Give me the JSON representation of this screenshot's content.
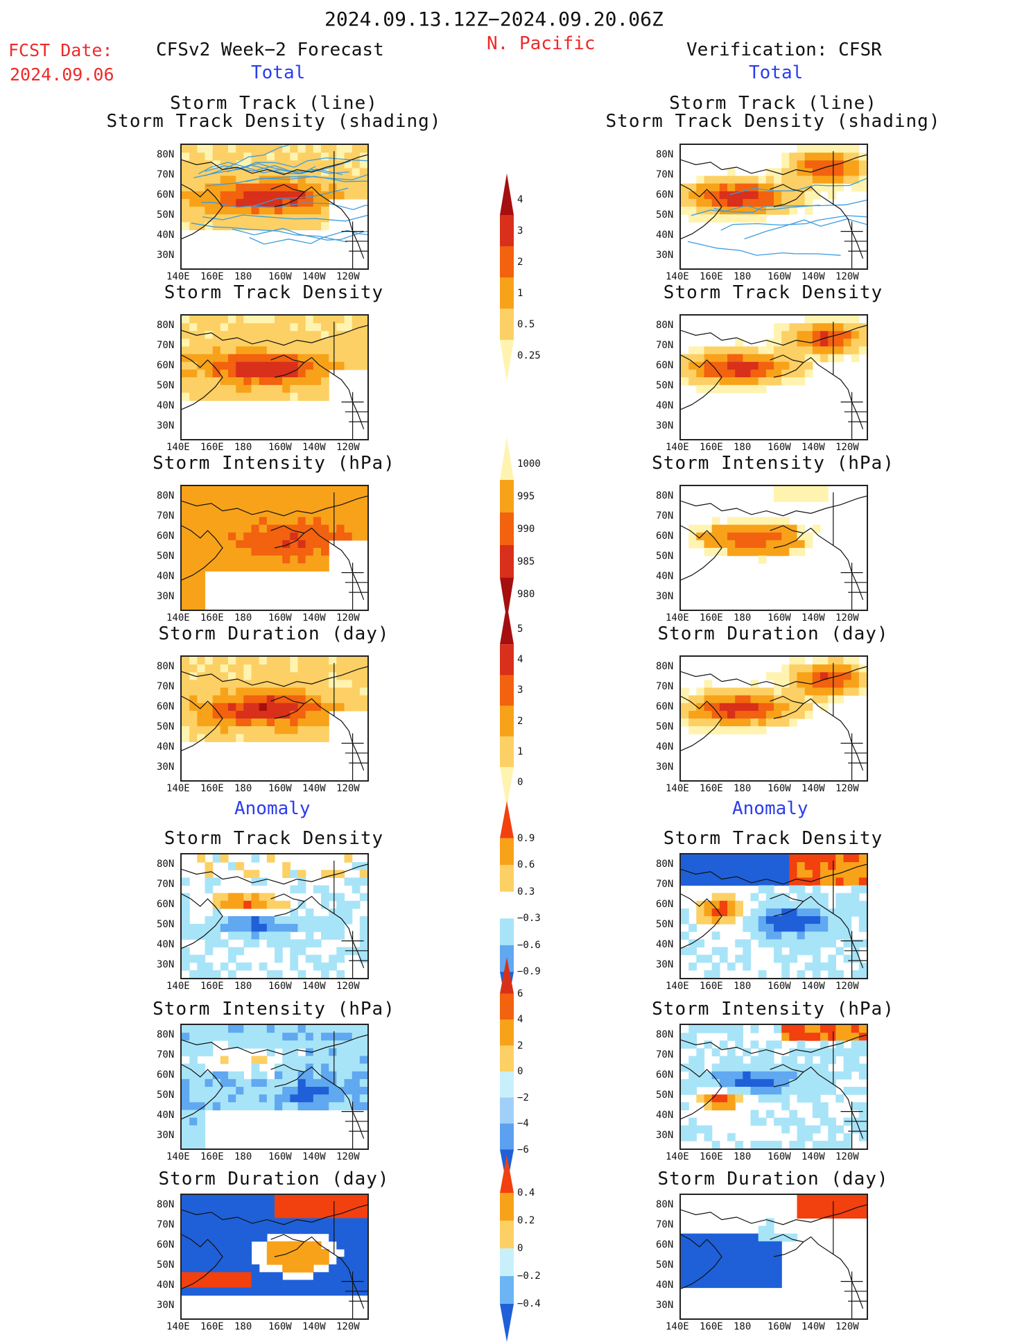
{
  "header": {
    "date_range": "2024.09.13.12Z−2024.09.20.06Z",
    "region": "N. Pacific",
    "fcst_label": "FCST Date:",
    "fcst_date": "2024.09.06",
    "left_title": "CFSv2 Week−2 Forecast",
    "right_title": "Verification: CFSR",
    "total_label": "Total",
    "anomaly_label": "Anomaly"
  },
  "axes": {
    "lat_ticks": [
      "80N",
      "70N",
      "60N",
      "50N",
      "40N",
      "30N"
    ],
    "lon_ticks": [
      "140E",
      "160E",
      "180",
      "160W",
      "140W",
      "120W"
    ]
  },
  "panels": [
    {
      "title_line1": "Storm Track (line)",
      "title_line2": "Storm Track Density (shading)",
      "palette": "total",
      "pattern": "std_f"
    },
    {
      "title_line1": "Storm Track Density",
      "title_line2": "",
      "palette": "total",
      "pattern": "std_f"
    },
    {
      "title_line1": "Storm Intensity (hPa)",
      "title_line2": "",
      "palette": "int",
      "pattern": "si_f"
    },
    {
      "title_line1": "Storm Duration (day)",
      "title_line2": "",
      "palette": "total",
      "pattern": "sd_f"
    },
    {
      "title_line1": "Storm Track Density",
      "title_line2": "",
      "palette": "anom",
      "pattern": "a_std_f"
    },
    {
      "title_line1": "Storm Intensity (hPa)",
      "title_line2": "",
      "palette": "anom",
      "pattern": "a_si_f"
    },
    {
      "title_line1": "Storm Duration (day)",
      "title_line2": "",
      "palette": "anom",
      "pattern": "a_sd_f"
    }
  ],
  "colorbars": [
    {
      "name": "track-density-colorbar",
      "labels": [
        "4",
        "3",
        "2",
        "1",
        "0.5",
        "0.25"
      ],
      "colors": [
        "#a50f0f",
        "#d8301a",
        "#f2620f",
        "#f8a21a",
        "#fcd064",
        "#fff3b0"
      ]
    },
    {
      "name": "intensity-colorbar",
      "labels": [
        "1000",
        "995",
        "990",
        "985",
        "980"
      ],
      "colors": [
        "#fff3b0",
        "#f8a21a",
        "#f2620f",
        "#d8301a",
        "#a50f0f"
      ]
    },
    {
      "name": "duration-colorbar",
      "labels": [
        "5",
        "4",
        "3",
        "2",
        "1",
        "0"
      ],
      "colors": [
        "#a50f0f",
        "#d8301a",
        "#f2620f",
        "#f8a21a",
        "#fcd064",
        "#fff3b0"
      ]
    },
    {
      "name": "anom-density-colorbar",
      "labels": [
        "0.9",
        "0.6",
        "0.3",
        "−0.3",
        "−0.6",
        "−0.9"
      ],
      "colors": [
        "#f2400f",
        "#f8a21a",
        "#fcd064",
        "#ffffff",
        "#a8e4f8",
        "#60a8f0",
        "#1f60d8"
      ]
    },
    {
      "name": "anom-intensity-colorbar",
      "labels": [
        "6",
        "4",
        "2",
        "0",
        "−2",
        "−4",
        "−6"
      ],
      "colors": [
        "#d8301a",
        "#f2620f",
        "#f8a21a",
        "#fcd064",
        "#c8f0fc",
        "#a0d0f8",
        "#5ca0f0",
        "#1f60d8"
      ]
    },
    {
      "name": "anom-duration-colorbar",
      "labels": [
        "0.4",
        "0.2",
        "0",
        "−0.2",
        "−0.4"
      ],
      "colors": [
        "#f2400f",
        "#f8a21a",
        "#fcd064",
        "#c8f0fc",
        "#6cb4f4",
        "#1f60d8"
      ]
    }
  ]
}
